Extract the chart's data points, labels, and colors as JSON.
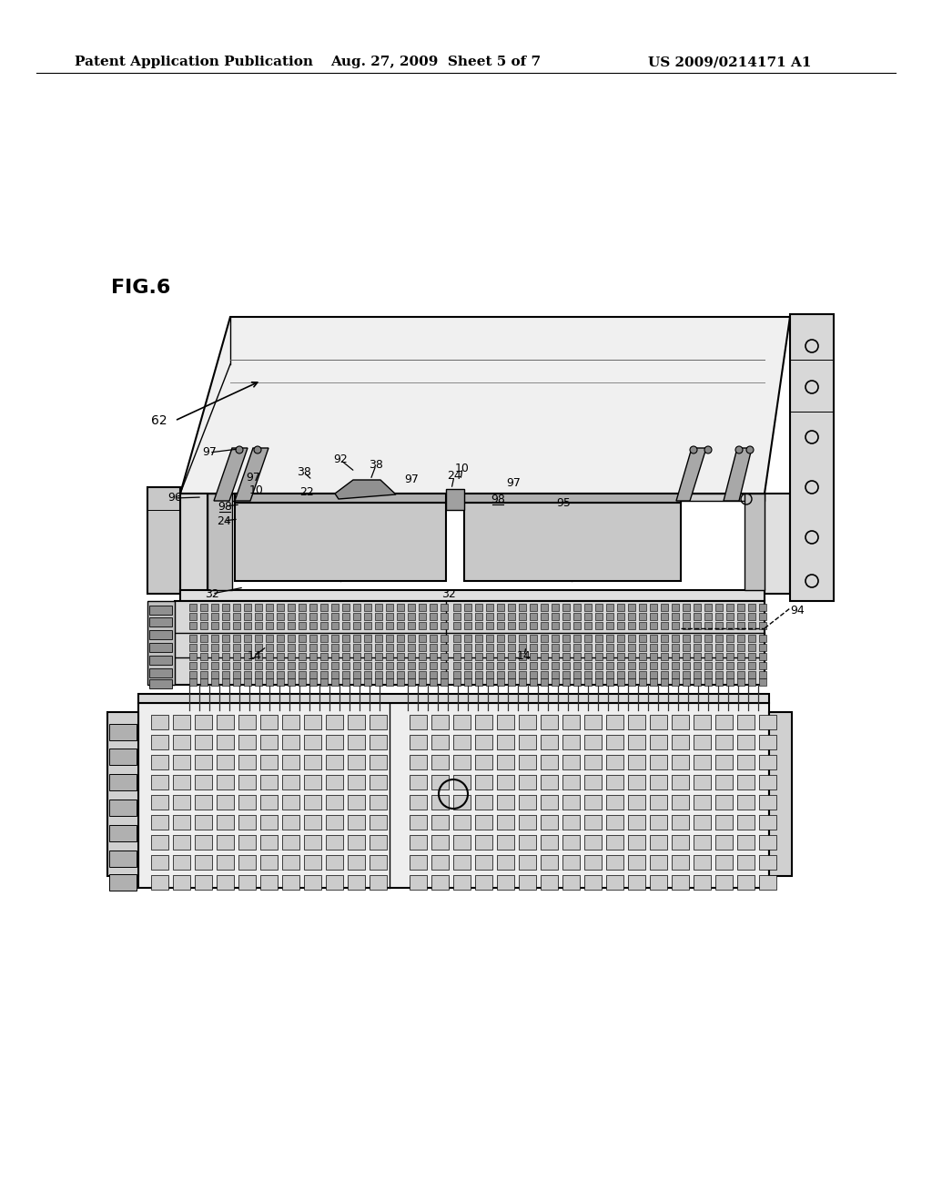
{
  "background_color": "#ffffff",
  "header_left": "Patent Application Publication",
  "header_center": "Aug. 27, 2009  Sheet 5 of 7",
  "header_right": "US 2009/0214171 A1",
  "fig_label": "FIG.6",
  "header_fontsize": 11,
  "fig_label_fontsize": 16
}
